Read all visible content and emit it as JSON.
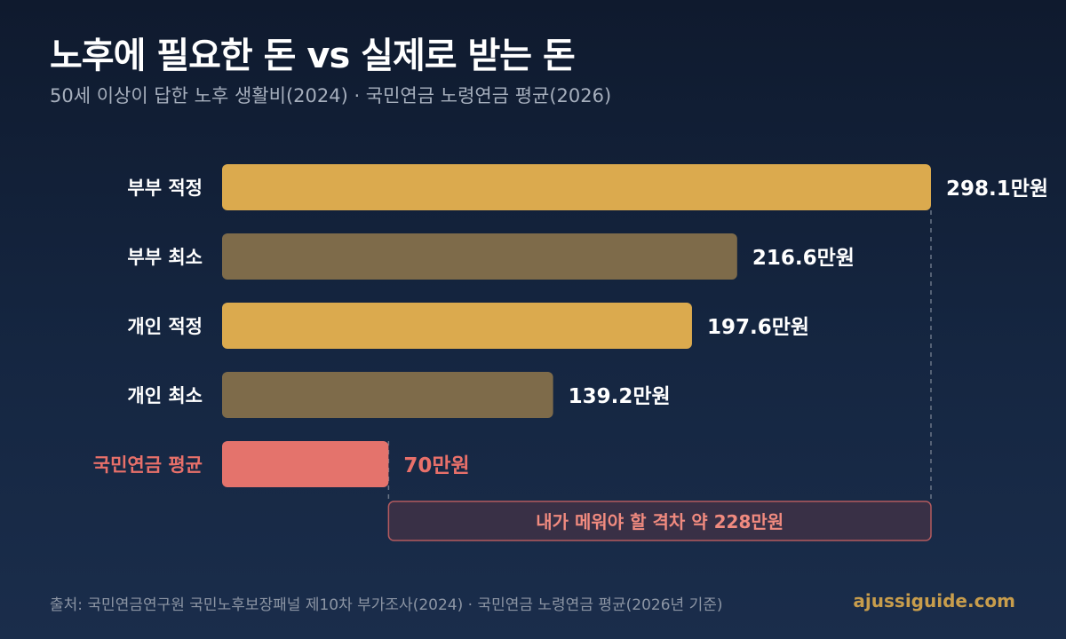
{
  "title": "노후에 필요한 돈 vs 실제로 받는 돈",
  "subtitle": "50세 이상이 답한 노후 생활비(2024) · 국민연금 노령연금 평균(2026)",
  "footer": {
    "source": "출처: 국민연금연구원 국민노후보장패널 제10차 부가조사(2024) · 국민연금 노령연금 평균(2026년 기준)",
    "brand": "ajussiguide.com"
  },
  "colors": {
    "optimal": "#dbaa4e",
    "minimum": "#7e6b4a",
    "pension": "#e4736c",
    "label": "#ffffff",
    "pension_label": "#e8706a",
    "gap_text": "#f08a7f"
  },
  "chart_data": {
    "type": "bar",
    "orientation": "horizontal",
    "categories": [
      "부부 적정",
      "부부 최소",
      "개인 적정",
      "개인 최소",
      "국민연금 평균"
    ],
    "values": [
      298.1,
      216.6,
      197.6,
      139.2,
      70
    ],
    "unit": "만원",
    "value_labels": [
      "298.1만원",
      "216.6만원",
      "197.6만원",
      "139.2만원",
      "70만원"
    ],
    "kinds": [
      "optimal",
      "minimum",
      "optimal",
      "minimum",
      "pension"
    ],
    "xlim": [
      0,
      298.1
    ],
    "annotation": {
      "text": "내가 메워야 할 격차  약 228만원",
      "from": 70,
      "to": 298.1
    }
  }
}
